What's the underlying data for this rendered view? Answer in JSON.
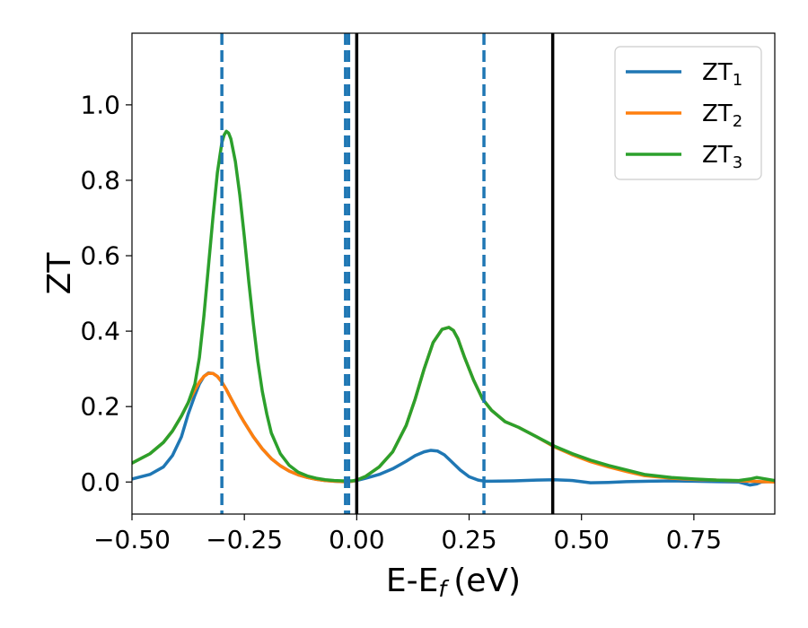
{
  "chart_data": {
    "type": "line",
    "title": "",
    "xlabel": "E-E",
    "xlabel_sub": "f",
    "xlabel_unit": "(eV)",
    "ylabel": "ZT",
    "xlim": [
      -0.5,
      0.93
    ],
    "ylim": [
      -0.085,
      1.19
    ],
    "xticks": [
      -0.5,
      -0.25,
      0.0,
      0.25,
      0.5,
      0.75
    ],
    "xtick_labels": [
      "−0.50",
      "−0.25",
      "0.00",
      "0.25",
      "0.50",
      "0.75"
    ],
    "yticks": [
      0.0,
      0.2,
      0.4,
      0.6,
      0.8,
      1.0
    ],
    "ytick_labels": [
      "0.0",
      "0.2",
      "0.4",
      "0.6",
      "0.8",
      "1.0"
    ],
    "grid": false,
    "legend_position": "top-right",
    "series": [
      {
        "name": "ZT",
        "name_sub": "1",
        "color": "#1f77b4",
        "x": [
          -0.5,
          -0.46,
          -0.43,
          -0.41,
          -0.39,
          -0.375,
          -0.36,
          -0.35,
          -0.34,
          -0.33,
          -0.32,
          -0.31,
          -0.3,
          -0.29,
          -0.28,
          -0.27,
          -0.26,
          -0.25,
          -0.23,
          -0.21,
          -0.19,
          -0.17,
          -0.15,
          -0.13,
          -0.11,
          -0.09,
          -0.07,
          -0.05,
          -0.03,
          -0.02,
          -0.01,
          0.0,
          0.02,
          0.05,
          0.08,
          0.11,
          0.13,
          0.15,
          0.165,
          0.18,
          0.195,
          0.21,
          0.23,
          0.25,
          0.27,
          0.285,
          0.3,
          0.35,
          0.4,
          0.44,
          0.48,
          0.52,
          0.56,
          0.6,
          0.65,
          0.7,
          0.75,
          0.8,
          0.85,
          0.875,
          0.89,
          0.9,
          0.93
        ],
        "y": [
          0.008,
          0.02,
          0.04,
          0.07,
          0.12,
          0.18,
          0.23,
          0.26,
          0.28,
          0.289,
          0.288,
          0.28,
          0.265,
          0.245,
          0.222,
          0.2,
          0.178,
          0.158,
          0.12,
          0.088,
          0.062,
          0.043,
          0.029,
          0.019,
          0.012,
          0.007,
          0.004,
          0.002,
          0.001,
          0.001,
          0.002,
          0.004,
          0.01,
          0.02,
          0.035,
          0.055,
          0.07,
          0.08,
          0.084,
          0.082,
          0.072,
          0.055,
          0.032,
          0.014,
          0.005,
          0.002,
          0.002,
          0.003,
          0.005,
          0.006,
          0.004,
          -0.002,
          -0.001,
          0.001,
          0.002,
          0.003,
          0.002,
          0.001,
          0.0,
          -0.008,
          -0.005,
          0.0,
          0.002
        ]
      },
      {
        "name": "ZT",
        "name_sub": "2",
        "color": "#ff7f0e",
        "x": [
          -0.5,
          -0.46,
          -0.43,
          -0.41,
          -0.39,
          -0.375,
          -0.36,
          -0.35,
          -0.34,
          -0.33,
          -0.32,
          -0.31,
          -0.3,
          -0.29,
          -0.28,
          -0.27,
          -0.26,
          -0.25,
          -0.23,
          -0.21,
          -0.19,
          -0.17,
          -0.15,
          -0.13,
          -0.11,
          -0.09,
          -0.07,
          -0.05,
          -0.03,
          -0.02,
          -0.01,
          0.0,
          0.02,
          0.05,
          0.08,
          0.11,
          0.13,
          0.15,
          0.17,
          0.19,
          0.205,
          0.215,
          0.225,
          0.24,
          0.26,
          0.28,
          0.3,
          0.33,
          0.36,
          0.4,
          0.44,
          0.48,
          0.52,
          0.56,
          0.6,
          0.64,
          0.7,
          0.75,
          0.8,
          0.85,
          0.88,
          0.9,
          0.93
        ],
        "y": [
          0.05,
          0.075,
          0.105,
          0.135,
          0.175,
          0.21,
          0.245,
          0.265,
          0.28,
          0.288,
          0.288,
          0.28,
          0.265,
          0.245,
          0.222,
          0.2,
          0.178,
          0.158,
          0.12,
          0.088,
          0.062,
          0.043,
          0.029,
          0.019,
          0.012,
          0.007,
          0.004,
          0.002,
          0.001,
          0.001,
          0.002,
          0.005,
          0.015,
          0.04,
          0.08,
          0.15,
          0.22,
          0.3,
          0.37,
          0.405,
          0.41,
          0.402,
          0.38,
          0.33,
          0.27,
          0.22,
          0.19,
          0.16,
          0.145,
          0.12,
          0.093,
          0.072,
          0.054,
          0.04,
          0.028,
          0.017,
          0.01,
          0.007,
          0.005,
          0.003,
          0.002,
          0.001,
          0.0
        ]
      },
      {
        "name": "ZT",
        "name_sub": "3",
        "color": "#2ca02c",
        "x": [
          -0.5,
          -0.46,
          -0.43,
          -0.41,
          -0.39,
          -0.375,
          -0.36,
          -0.35,
          -0.34,
          -0.33,
          -0.32,
          -0.31,
          -0.3,
          -0.295,
          -0.29,
          -0.285,
          -0.28,
          -0.27,
          -0.26,
          -0.25,
          -0.24,
          -0.23,
          -0.22,
          -0.21,
          -0.2,
          -0.19,
          -0.17,
          -0.15,
          -0.13,
          -0.11,
          -0.09,
          -0.07,
          -0.05,
          -0.03,
          -0.02,
          -0.01,
          0.0,
          0.02,
          0.05,
          0.08,
          0.11,
          0.13,
          0.15,
          0.17,
          0.19,
          0.205,
          0.215,
          0.225,
          0.24,
          0.26,
          0.28,
          0.3,
          0.33,
          0.36,
          0.4,
          0.44,
          0.48,
          0.52,
          0.56,
          0.6,
          0.64,
          0.7,
          0.75,
          0.8,
          0.85,
          0.875,
          0.89,
          0.9,
          0.93
        ],
        "y": [
          0.05,
          0.075,
          0.105,
          0.135,
          0.175,
          0.21,
          0.26,
          0.33,
          0.44,
          0.57,
          0.7,
          0.82,
          0.9,
          0.92,
          0.93,
          0.925,
          0.91,
          0.85,
          0.76,
          0.65,
          0.53,
          0.42,
          0.32,
          0.24,
          0.18,
          0.13,
          0.075,
          0.044,
          0.026,
          0.016,
          0.01,
          0.006,
          0.004,
          0.003,
          0.003,
          0.003,
          0.005,
          0.015,
          0.04,
          0.08,
          0.15,
          0.22,
          0.3,
          0.37,
          0.405,
          0.41,
          0.402,
          0.38,
          0.33,
          0.27,
          0.22,
          0.19,
          0.16,
          0.145,
          0.12,
          0.095,
          0.075,
          0.058,
          0.044,
          0.032,
          0.02,
          0.012,
          0.008,
          0.005,
          0.004,
          0.008,
          0.012,
          0.01,
          0.004
        ]
      }
    ],
    "vlines": [
      {
        "x": -0.3,
        "style": "dashed",
        "color": "#1f77b4"
      },
      {
        "x": -0.025,
        "style": "dashed",
        "color": "#1f77b4"
      },
      {
        "x": -0.018,
        "style": "dashed",
        "color": "#1f77b4"
      },
      {
        "x": 0.283,
        "style": "dashed",
        "color": "#1f77b4"
      },
      {
        "x": 0.0,
        "style": "solid",
        "color": "#000000"
      },
      {
        "x": 0.436,
        "style": "solid",
        "color": "#000000"
      }
    ]
  }
}
